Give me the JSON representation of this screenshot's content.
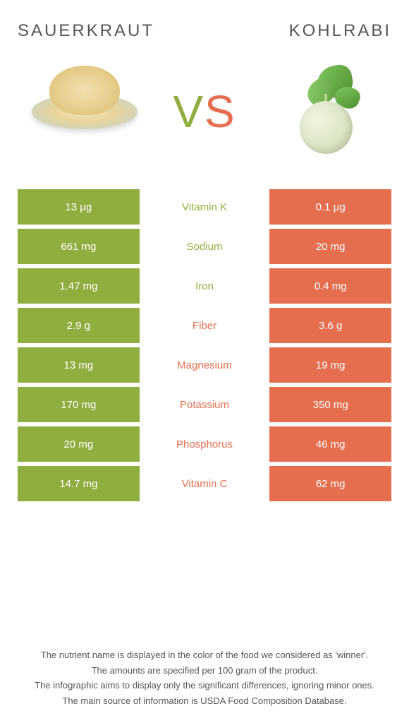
{
  "header": {
    "left_title": "Sauerkraut",
    "right_title": "Kohlrabi"
  },
  "vs": {
    "v": "V",
    "s": "S"
  },
  "colors": {
    "left": "#8fae3f",
    "right": "#e46e4e",
    "text_footer": "#555555",
    "background": "#ffffff"
  },
  "table": {
    "type": "comparison-table",
    "rows": [
      {
        "left": "13 µg",
        "label": "Vitamin K",
        "right": "0.1 µg",
        "winner": "left"
      },
      {
        "left": "661 mg",
        "label": "Sodium",
        "right": "20 mg",
        "winner": "left"
      },
      {
        "left": "1.47 mg",
        "label": "Iron",
        "right": "0.4 mg",
        "winner": "left"
      },
      {
        "left": "2.9 g",
        "label": "Fiber",
        "right": "3.6 g",
        "winner": "right"
      },
      {
        "left": "13 mg",
        "label": "Magnesium",
        "right": "19 mg",
        "winner": "right"
      },
      {
        "left": "170 mg",
        "label": "Potassium",
        "right": "350 mg",
        "winner": "right"
      },
      {
        "left": "20 mg",
        "label": "Phosphorus",
        "right": "46 mg",
        "winner": "right"
      },
      {
        "left": "14.7 mg",
        "label": "Vitamin C",
        "right": "62 mg",
        "winner": "right"
      }
    ]
  },
  "footer": {
    "line1": "The nutrient name is displayed in the color of the food we considered as 'winner'.",
    "line2": "The amounts are specified per 100 gram of the product.",
    "line3": "The infographic aims to display only the significant differences, ignoring minor ones.",
    "line4": "The main source of information is USDA Food Composition Database."
  }
}
